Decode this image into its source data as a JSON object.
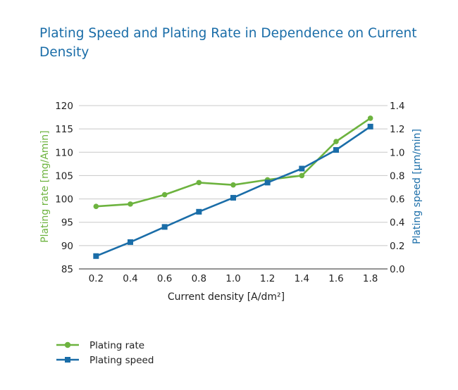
{
  "chart_data": {
    "type": "line",
    "title": "Plating Speed and Plating Rate in Dependence on Current Density",
    "xlabel": "Current density [A/dm²]",
    "ylabel_left": "Plating rate [mg/Amin]",
    "ylabel_right": "Plating speed [µm/min]",
    "x": [
      0.2,
      0.4,
      0.6,
      0.8,
      1.0,
      1.2,
      1.4,
      1.6,
      1.8
    ],
    "x_tick_labels": [
      "0.2",
      "0.4",
      "0.6",
      "0.8",
      "1.0",
      "1.2",
      "1.4",
      "1.6",
      "1.8"
    ],
    "ylim_left": [
      85,
      120
    ],
    "y_ticks_left": [
      "85",
      "90",
      "95",
      "100",
      "105",
      "110",
      "115",
      "120"
    ],
    "ylim_right": [
      0.0,
      1.4
    ],
    "y_ticks_right": [
      "0.0",
      "0.2",
      "0.4",
      "0.6",
      "0.8",
      "1.0",
      "1.2",
      "1.4"
    ],
    "grid": true,
    "legend_position": "bottom-left",
    "series": [
      {
        "name": "Plating rate",
        "axis": "left",
        "marker": "circle",
        "color": "#6db33f",
        "values": [
          98.4,
          98.9,
          100.9,
          103.5,
          103.0,
          104.1,
          105.0,
          112.3,
          117.3
        ]
      },
      {
        "name": "Plating speed",
        "axis": "right",
        "marker": "square",
        "color": "#1a6da8",
        "values": [
          0.11,
          0.23,
          0.36,
          0.49,
          0.61,
          0.74,
          0.86,
          1.02,
          1.22
        ]
      }
    ]
  }
}
